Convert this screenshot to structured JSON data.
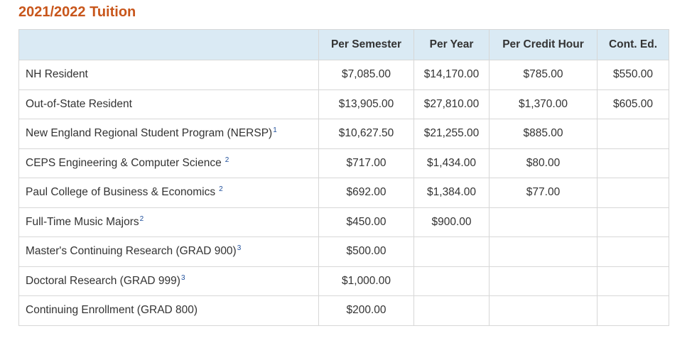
{
  "title": "2021/2022 Tuition",
  "headers": [
    "",
    "Per Semester",
    "Per Year",
    "Per Credit Hour",
    "Cont. Ed."
  ],
  "rows": [
    {
      "label": "NH Resident",
      "footnote": "",
      "values": [
        "$7,085.00",
        "$14,170.00",
        "$785.00",
        "$550.00"
      ]
    },
    {
      "label": "Out-of-State Resident",
      "footnote": "",
      "values": [
        "$13,905.00",
        "$27,810.00",
        "$1,370.00",
        "$605.00"
      ]
    },
    {
      "label": "New England Regional Student Program (NERSP)",
      "footnote": "1",
      "values": [
        "$10,627.50",
        "$21,255.00",
        "$885.00",
        ""
      ]
    },
    {
      "label": "CEPS Engineering & Computer Science",
      "footnote": "2",
      "values": [
        "$717.00",
        "$1,434.00",
        "$80.00",
        ""
      ]
    },
    {
      "label": "Paul College of Business & Economics",
      "footnote": "2",
      "values": [
        "$692.00",
        "$1,384.00",
        "$77.00",
        ""
      ]
    },
    {
      "label": "Full-Time Music Majors",
      "footnote": "2",
      "values": [
        "$450.00",
        "$900.00",
        "",
        ""
      ]
    },
    {
      "label": "Master's Continuing Research (GRAD 900)",
      "footnote": "3",
      "values": [
        "$500.00",
        "",
        "",
        ""
      ]
    },
    {
      "label": "Doctoral Research (GRAD 999)",
      "footnote": "3",
      "values": [
        "$1,000.00",
        "",
        "",
        ""
      ]
    },
    {
      "label": "Continuing Enrollment (GRAD 800)",
      "footnote": "",
      "values": [
        "$200.00",
        "",
        "",
        ""
      ]
    }
  ]
}
